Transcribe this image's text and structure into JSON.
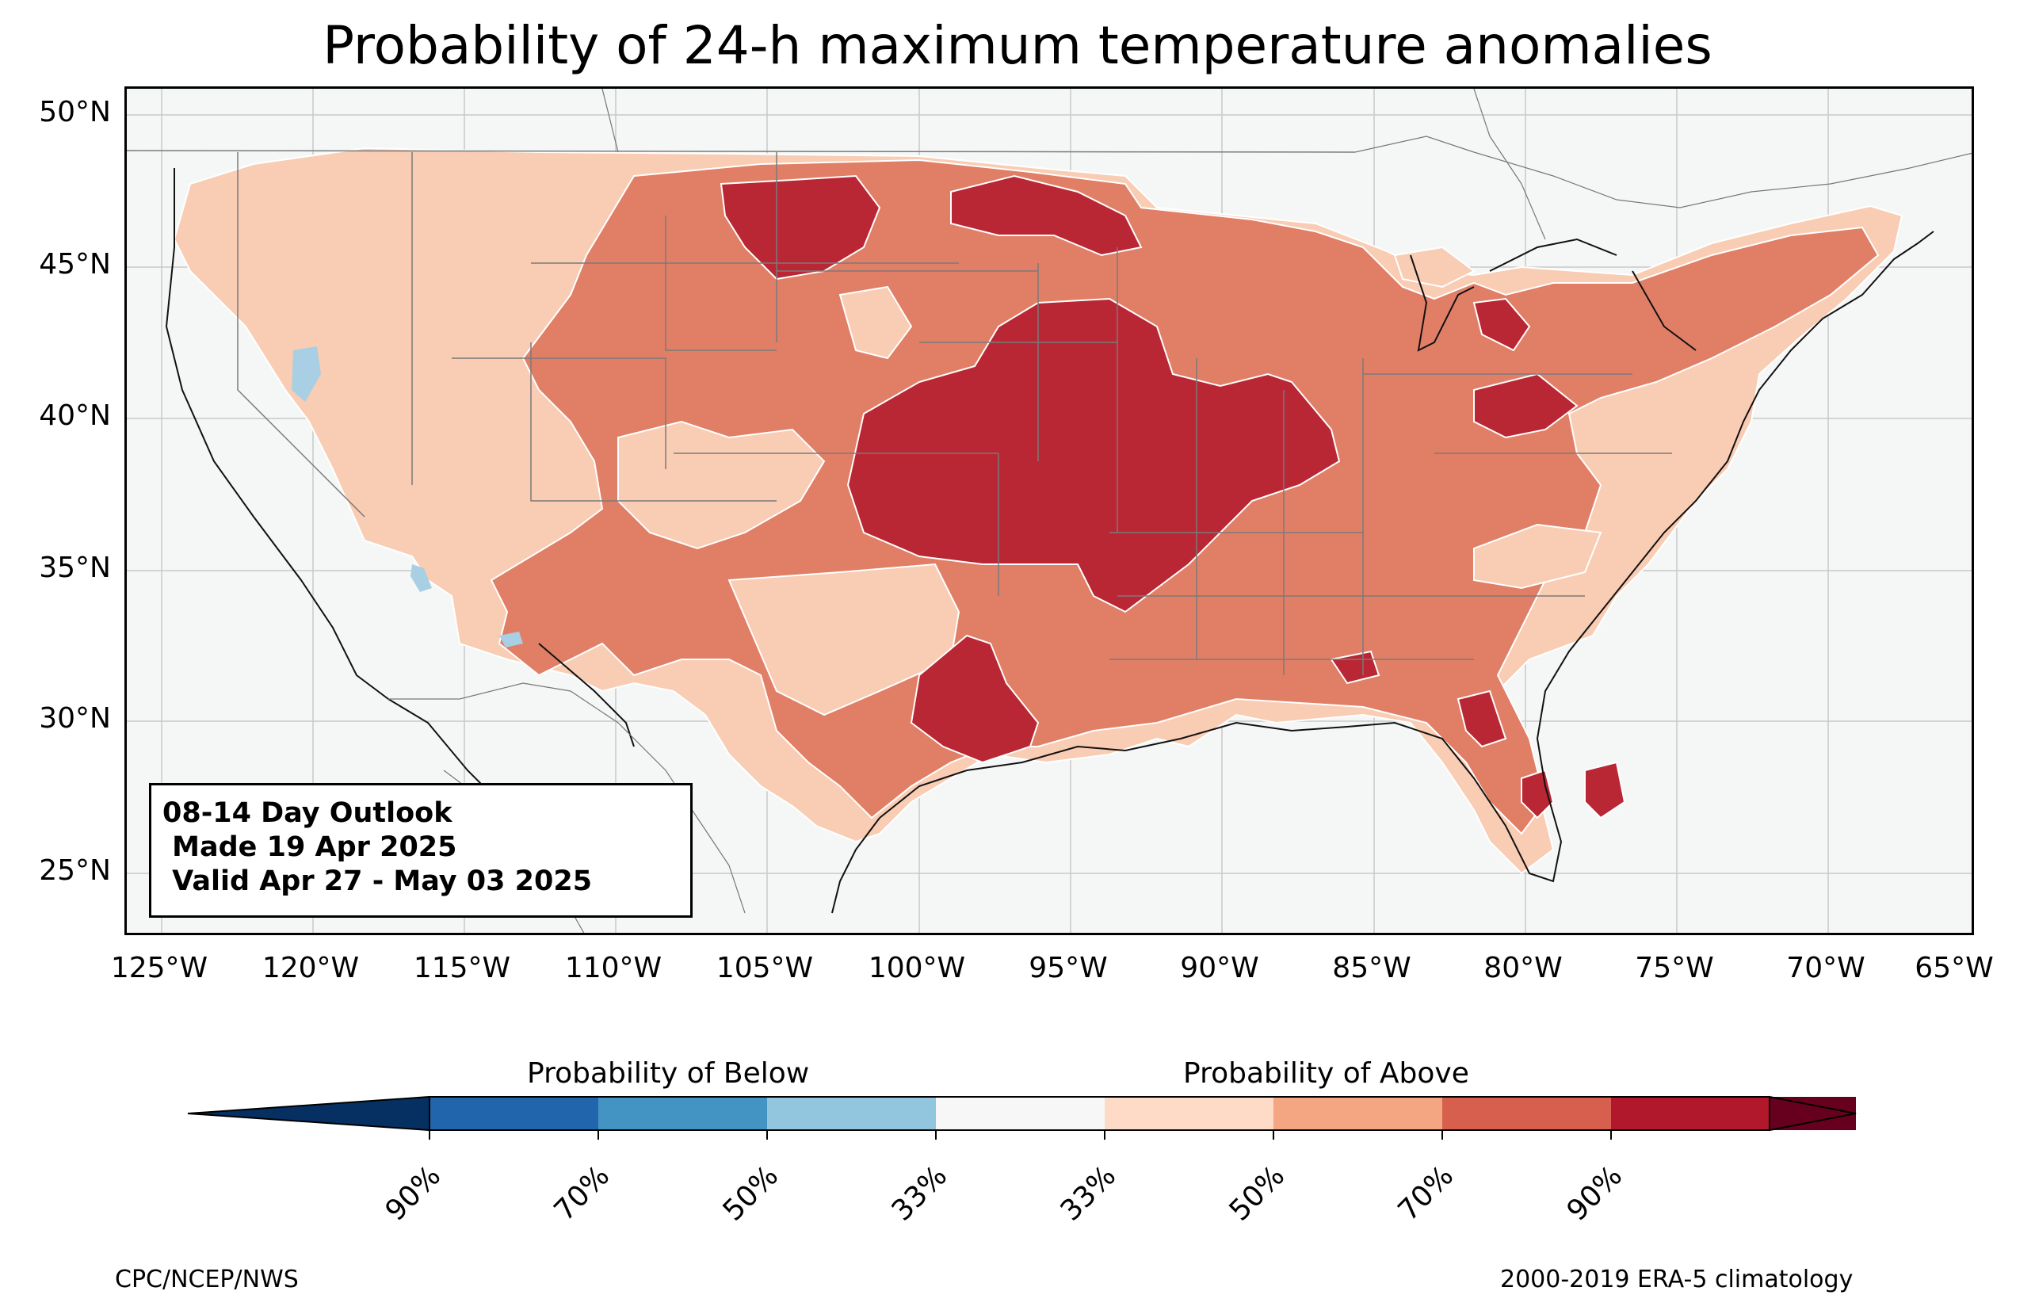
{
  "title": "Probability of 24-h maximum temperature anomalies",
  "map": {
    "lat_labels": [
      "50°N",
      "45°N",
      "40°N",
      "35°N",
      "30°N",
      "25°N"
    ],
    "lon_labels": [
      "125°W",
      "120°W",
      "115°W",
      "110°W",
      "105°W",
      "100°W",
      "95°W",
      "90°W",
      "85°W",
      "80°W",
      "75°W",
      "70°W",
      "65°W"
    ],
    "lon_range": [
      -126,
      -65
    ],
    "lat_range": [
      23,
      51
    ],
    "background_color": "#f5f7f7"
  },
  "outlook": {
    "line1": "08-14 Day Outlook",
    "line2": " Made 19 Apr 2025",
    "line3": " Valid Apr 27 - May 03 2025"
  },
  "colorbar": {
    "below_title": "Probability of Below",
    "above_title": "Probability of Above",
    "colors": [
      "#053061",
      "#2166ac",
      "#4393c3",
      "#92c5de",
      "#d1e5f0",
      "#f7f7f7",
      "#fddbc7",
      "#f4a582",
      "#d6604d",
      "#b2182b",
      "#67001f"
    ],
    "ticks": [
      "90%",
      "70%",
      "50%",
      "33%",
      "33%",
      "50%",
      "70%",
      "90%"
    ]
  },
  "legend_colors": {
    "above_33": "#f9ccb4",
    "above_50": "#e07f66",
    "above_70": "#b92735",
    "below_33": "#a8cfe3"
  },
  "footer": {
    "left": "CPC/NCEP/NWS",
    "right": "2000-2019 ERA-5 climatology"
  }
}
